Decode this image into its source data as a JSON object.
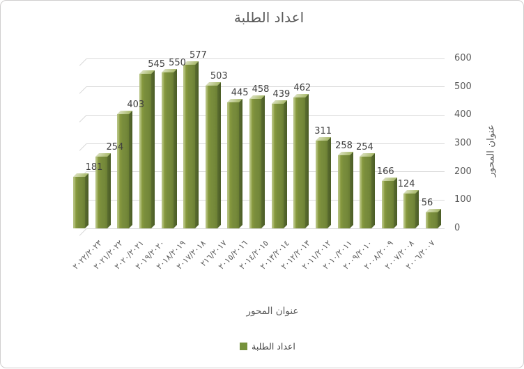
{
  "chart_data": {
    "type": "bar",
    "style": "3d-clustered-column",
    "title": "اعداد الطلبة",
    "xlabel": "عنوان المحور",
    "ylabel": "عنوان المحور",
    "categories": [
      "٢٠٢٢/٢٠٢٣",
      "٢٠٢١/٢٠٢٢",
      "٢٠٢٠/٢٠٢١",
      "٢٠١٩/٢٠٢٠",
      "٢٠١٨/٢٠١٩",
      "٢٠١٧/٢٠١٨",
      "٢١٦/٢٠١٧",
      "٢٠١٥/٢٠١٦",
      "٢٠١٤/٢٠١٥",
      "٢٠١٣/٢٠١٤",
      "٢٠١٢/٢٠١٣",
      "٢٠١١/٢٠١٢",
      "٢٠١٠/٢٠١١",
      "٢٠٠٩/٢٠١٠",
      "٢٠٠٨/٢٠٠٩",
      "٢٠٠٧/٢٠٠٨",
      "٢٠٠٦/٢٠٠٧"
    ],
    "values": [
      181,
      254,
      403,
      545,
      550,
      577,
      503,
      445,
      458,
      439,
      462,
      311,
      258,
      254,
      166,
      124,
      56
    ],
    "data_labels_visible": true,
    "yticks": [
      0,
      100,
      200,
      300,
      400,
      500,
      600
    ],
    "ylim": [
      0,
      600
    ],
    "grid": true,
    "legend": [
      {
        "label": "اعداد الطلبة",
        "color": "#76923C"
      }
    ],
    "legend_position": "bottom",
    "colors": {
      "bar_front": "#778C3A",
      "bar_highlight": "#B6C383",
      "bar_side": "#4C5E26",
      "bar_top": "#C9D3A2",
      "gridline": "#D9D9D9",
      "axis_text": "#595959",
      "label_text": "#3F3F3F",
      "frame_border": "#D0CECE"
    }
  }
}
